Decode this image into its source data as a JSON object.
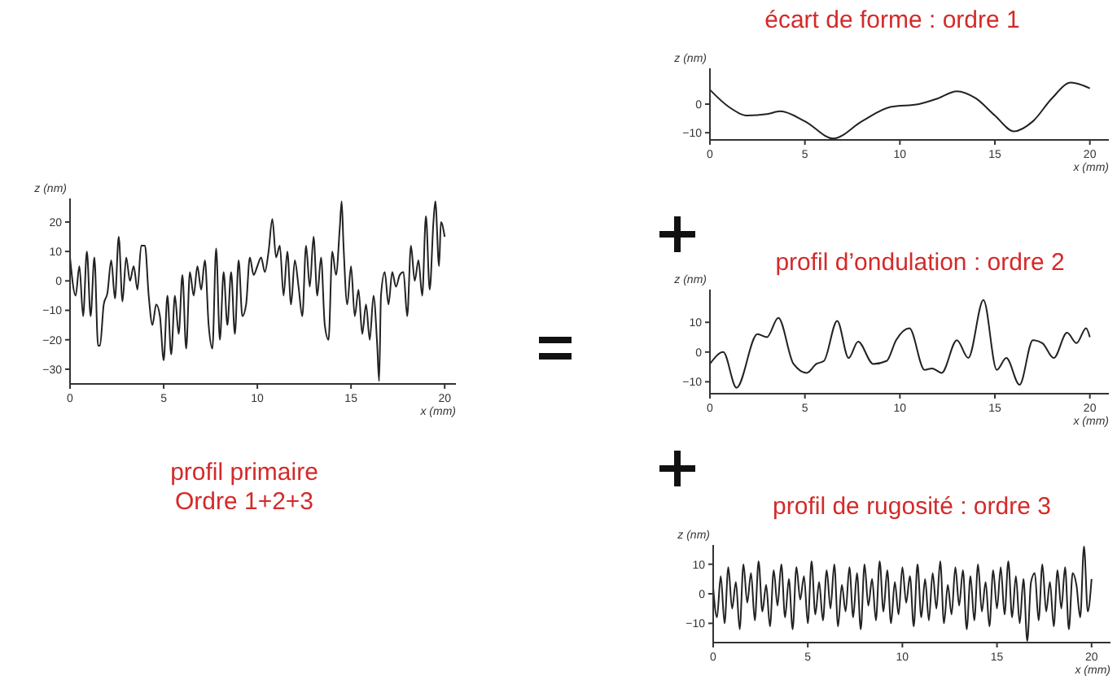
{
  "chart_data": [
    {
      "type": "line",
      "title": "profil primaire",
      "subtitle": "Ordre 1+2+3",
      "xlabel": "x (mm)",
      "ylabel": "z (nm)",
      "xlim": [
        0,
        20.6
      ],
      "ylim": [
        -35,
        28
      ],
      "xticks": [
        0,
        5,
        10,
        15,
        20
      ],
      "yticks": [
        -30,
        -20,
        -10,
        0,
        10,
        20
      ],
      "grid": false,
      "color": "#222222",
      "x": [
        0,
        0.3,
        0.5,
        0.7,
        0.9,
        1.1,
        1.3,
        1.5,
        1.6,
        1.8,
        2,
        2.2,
        2.4,
        2.6,
        2.8,
        3,
        3.2,
        3.4,
        3.6,
        3.8,
        4,
        4.2,
        4.4,
        4.6,
        4.8,
        5,
        5.2,
        5.4,
        5.6,
        5.8,
        6,
        6.2,
        6.4,
        6.6,
        6.8,
        7,
        7.2,
        7.4,
        7.6,
        7.8,
        8,
        8.2,
        8.4,
        8.6,
        8.8,
        9,
        9.2,
        9.4,
        9.6,
        9.8,
        10,
        10.2,
        10.4,
        10.6,
        10.8,
        11,
        11.2,
        11.4,
        11.6,
        11.8,
        12,
        12.2,
        12.4,
        12.6,
        12.8,
        13,
        13.2,
        13.4,
        13.6,
        13.8,
        14,
        14.2,
        14.4,
        14.5,
        14.6,
        14.8,
        15,
        15.2,
        15.4,
        15.6,
        15.8,
        16,
        16.2,
        16.4,
        16.5,
        16.6,
        16.8,
        17,
        17.2,
        17.4,
        17.6,
        17.8,
        18,
        18.2,
        18.4,
        18.6,
        18.8,
        19,
        19.2,
        19.4,
        19.5,
        19.7,
        19.8,
        20
      ],
      "values": [
        8,
        -5,
        5,
        -12,
        10,
        -12,
        8,
        -22,
        -22,
        -8,
        -4,
        7,
        -6,
        15,
        -7,
        8,
        0,
        5,
        -3,
        12,
        12,
        -5,
        -15,
        -8,
        -12,
        -27,
        -5,
        -25,
        -5,
        -18,
        2,
        -23,
        3,
        -5,
        5,
        -3,
        7,
        -15,
        -23,
        11,
        -20,
        3,
        -15,
        3,
        -18,
        7,
        -12,
        -8,
        8,
        2,
        5,
        8,
        3,
        10,
        21,
        8,
        12,
        -5,
        10,
        -8,
        7,
        -2,
        -12,
        12,
        -2,
        15,
        -5,
        8,
        -15,
        -20,
        10,
        2,
        18,
        27,
        12,
        -8,
        5,
        -12,
        -3,
        -18,
        -8,
        -20,
        -5,
        -22,
        -34,
        -5,
        3,
        -8,
        3,
        -2,
        2,
        3,
        -12,
        12,
        0,
        7,
        -5,
        22,
        -3,
        20,
        27,
        5,
        20,
        15
      ]
    },
    {
      "type": "line",
      "title": "écart de forme : ordre 1",
      "xlabel": "x (mm)",
      "ylabel": "z (nm)",
      "xlim": [
        0,
        21
      ],
      "ylim": [
        -12.5,
        12.5
      ],
      "xticks": [
        0,
        5,
        10,
        15,
        20
      ],
      "yticks": [
        -10,
        0
      ],
      "grid": false,
      "color": "#222222",
      "x": [
        0,
        1,
        2,
        3,
        3.7,
        5,
        6.5,
        8,
        9.5,
        11,
        12,
        13,
        14,
        15,
        16,
        17,
        18,
        19,
        20
      ],
      "values": [
        5,
        -1,
        -4,
        -3.5,
        -2.5,
        -6,
        -12,
        -6,
        -1,
        0,
        2,
        4.5,
        2,
        -4,
        -9.5,
        -6,
        2,
        7.5,
        5.5
      ]
    },
    {
      "type": "line",
      "title": "profil d’ondulation : ordre 2",
      "xlabel": "x (mm)",
      "ylabel": "z (nm)",
      "xlim": [
        0,
        21
      ],
      "ylim": [
        -14,
        21
      ],
      "xticks": [
        0,
        5,
        10,
        15,
        20
      ],
      "yticks": [
        -10,
        0,
        10
      ],
      "grid": false,
      "color": "#222222",
      "x": [
        0,
        0.7,
        1.4,
        2.5,
        3,
        3.6,
        4.4,
        5.1,
        5.6,
        6,
        6.7,
        7.3,
        7.8,
        8.6,
        9.3,
        9.8,
        10.5,
        11.3,
        11.7,
        12.2,
        13,
        13.6,
        14.4,
        15.1,
        15.6,
        16.3,
        17,
        17.5,
        18.1,
        18.8,
        19.3,
        19.8,
        20
      ],
      "values": [
        -4,
        0,
        -12,
        6,
        5,
        11.5,
        -4,
        -7,
        -4,
        -3,
        10.5,
        -2,
        3.5,
        -4,
        -3,
        4,
        8,
        -6,
        -5.5,
        -7,
        4,
        -2,
        17.5,
        -6,
        -2,
        -11,
        4,
        3,
        -2,
        6.5,
        3,
        8,
        5
      ]
    },
    {
      "type": "line",
      "title": "profil de rugosité : ordre 3",
      "xlabel": "x (mm)",
      "ylabel": "z (nm)",
      "xlim": [
        0,
        21
      ],
      "ylim": [
        -16.5,
        16.5
      ],
      "xticks": [
        0,
        5,
        10,
        15,
        20
      ],
      "yticks": [
        -10,
        0,
        10
      ],
      "grid": false,
      "color": "#222222",
      "x": [
        0,
        0.2,
        0.4,
        0.6,
        0.8,
        1,
        1.2,
        1.4,
        1.6,
        1.8,
        2,
        2.2,
        2.4,
        2.6,
        2.8,
        3,
        3.2,
        3.4,
        3.6,
        3.8,
        4,
        4.2,
        4.4,
        4.6,
        4.8,
        5,
        5.2,
        5.4,
        5.6,
        5.8,
        6,
        6.2,
        6.4,
        6.6,
        6.8,
        7,
        7.2,
        7.4,
        7.6,
        7.8,
        8,
        8.2,
        8.4,
        8.6,
        8.8,
        9,
        9.2,
        9.4,
        9.6,
        9.8,
        10,
        10.2,
        10.4,
        10.6,
        10.8,
        11,
        11.2,
        11.4,
        11.6,
        11.8,
        12,
        12.2,
        12.4,
        12.6,
        12.8,
        13,
        13.2,
        13.4,
        13.6,
        13.8,
        14,
        14.2,
        14.4,
        14.6,
        14.8,
        15,
        15.2,
        15.4,
        15.6,
        15.8,
        16,
        16.2,
        16.4,
        16.6,
        16.8,
        17,
        17.2,
        17.4,
        17.6,
        17.8,
        18,
        18.2,
        18.4,
        18.6,
        18.8,
        19,
        19.2,
        19.4,
        19.6,
        19.8,
        20
      ],
      "values": [
        2,
        -8,
        6,
        -10,
        9,
        -5,
        4,
        -12,
        10,
        -3,
        7,
        -9,
        11,
        -6,
        3,
        -11,
        8,
        -4,
        10,
        -8,
        5,
        -12,
        9,
        -2,
        6,
        -10,
        11,
        -7,
        4,
        -9,
        8,
        -5,
        10,
        -11,
        3,
        -6,
        9,
        -8,
        7,
        -12,
        10,
        -4,
        5,
        -9,
        11,
        -6,
        8,
        -10,
        4,
        -7,
        9,
        -3,
        6,
        -11,
        10,
        -8,
        5,
        -9,
        7,
        -5,
        11,
        -10,
        3,
        -7,
        9,
        -4,
        8,
        -12,
        6,
        -9,
        10,
        -6,
        4,
        -11,
        8,
        -5,
        9,
        -7,
        11,
        -8,
        6,
        -10,
        5,
        -16,
        4,
        7,
        -9,
        10,
        -6,
        4,
        -11,
        8,
        -5,
        9,
        -12,
        7,
        3,
        -8,
        16,
        -6,
        5
      ]
    }
  ]
}
